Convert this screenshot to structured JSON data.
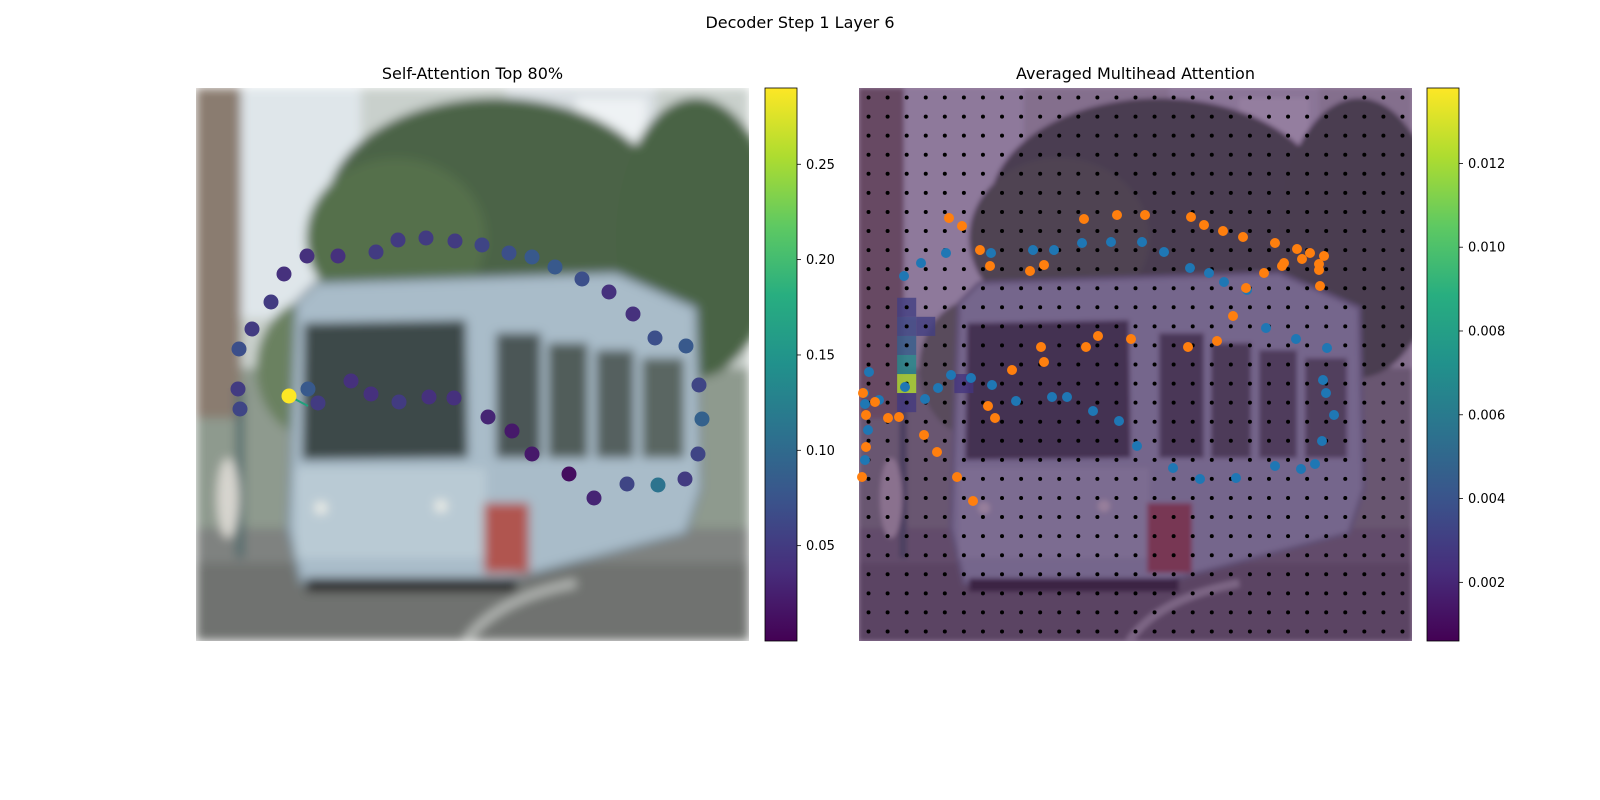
{
  "figure": {
    "suptitle": "Decoder Step 1 Layer 6"
  },
  "chart_data": [
    {
      "type": "scatter",
      "title": "Self-Attention Top 80%",
      "background": "blurred street photo of a light-blue tram",
      "colormap": "viridis",
      "colorbar": {
        "min": 0.0,
        "max": 0.29,
        "ticks": [
          0.05,
          0.1,
          0.15,
          0.2,
          0.25
        ],
        "tick_labels": [
          "0.05",
          "0.10",
          "0.15",
          "0.20",
          "0.25"
        ]
      },
      "query_point": {
        "x": 93,
        "y": 308,
        "value": 0.29
      },
      "attention_links": [
        {
          "from": [
            93,
            308
          ],
          "to": [
            112,
            318
          ]
        }
      ],
      "points": [
        {
          "x": 44,
          "y": 321,
          "v": 0.06
        },
        {
          "x": 42,
          "y": 301,
          "v": 0.05
        },
        {
          "x": 43,
          "y": 261,
          "v": 0.07
        },
        {
          "x": 56,
          "y": 241,
          "v": 0.05
        },
        {
          "x": 75,
          "y": 214,
          "v": 0.05
        },
        {
          "x": 88,
          "y": 186,
          "v": 0.04
        },
        {
          "x": 111,
          "y": 168,
          "v": 0.04
        },
        {
          "x": 142,
          "y": 168,
          "v": 0.04
        },
        {
          "x": 180,
          "y": 164,
          "v": 0.05
        },
        {
          "x": 202,
          "y": 152,
          "v": 0.05
        },
        {
          "x": 230,
          "y": 150,
          "v": 0.05
        },
        {
          "x": 259,
          "y": 153,
          "v": 0.05
        },
        {
          "x": 286,
          "y": 157,
          "v": 0.06
        },
        {
          "x": 313,
          "y": 165,
          "v": 0.07
        },
        {
          "x": 336,
          "y": 169,
          "v": 0.08
        },
        {
          "x": 359,
          "y": 179,
          "v": 0.08
        },
        {
          "x": 386,
          "y": 191,
          "v": 0.07
        },
        {
          "x": 413,
          "y": 204,
          "v": 0.04
        },
        {
          "x": 437,
          "y": 226,
          "v": 0.04
        },
        {
          "x": 459,
          "y": 250,
          "v": 0.07
        },
        {
          "x": 490,
          "y": 258,
          "v": 0.08
        },
        {
          "x": 503,
          "y": 297,
          "v": 0.06
        },
        {
          "x": 506,
          "y": 331,
          "v": 0.09
        },
        {
          "x": 502,
          "y": 366,
          "v": 0.06
        },
        {
          "x": 489,
          "y": 391,
          "v": 0.05
        },
        {
          "x": 462,
          "y": 397,
          "v": 0.11
        },
        {
          "x": 431,
          "y": 396,
          "v": 0.06
        },
        {
          "x": 398,
          "y": 410,
          "v": 0.03
        },
        {
          "x": 373,
          "y": 386,
          "v": 0.01
        },
        {
          "x": 336,
          "y": 366,
          "v": 0.02
        },
        {
          "x": 316,
          "y": 343,
          "v": 0.02
        },
        {
          "x": 292,
          "y": 329,
          "v": 0.03
        },
        {
          "x": 258,
          "y": 310,
          "v": 0.04
        },
        {
          "x": 233,
          "y": 309,
          "v": 0.04
        },
        {
          "x": 203,
          "y": 314,
          "v": 0.05
        },
        {
          "x": 175,
          "y": 306,
          "v": 0.04
        },
        {
          "x": 155,
          "y": 293,
          "v": 0.04
        },
        {
          "x": 122,
          "y": 315,
          "v": 0.05
        },
        {
          "x": 112,
          "y": 301,
          "v": 0.08
        }
      ]
    },
    {
      "type": "heatmap",
      "title": "Averaged Multihead Attention",
      "background": "blurred street photo of a light-blue tram under attention heatmap",
      "colormap": "viridis",
      "colorbar": {
        "min": 0.0006,
        "max": 0.0138,
        "ticks": [
          0.002,
          0.004,
          0.006,
          0.008,
          0.01,
          0.012
        ],
        "tick_labels": [
          "0.002",
          "0.004",
          "0.006",
          "0.008",
          "0.010",
          "0.012"
        ]
      },
      "grid": {
        "cols": 29,
        "rows": 29,
        "marker_color": "#000000"
      },
      "hot_cells": [
        {
          "col": 2,
          "row": 15,
          "value": 0.0122
        },
        {
          "col": 2,
          "row": 14,
          "value": 0.0068
        },
        {
          "col": 2,
          "row": 13,
          "value": 0.0045
        },
        {
          "col": 2,
          "row": 12,
          "value": 0.0035
        },
        {
          "col": 2,
          "row": 11,
          "value": 0.003
        },
        {
          "col": 2,
          "row": 16,
          "value": 0.0028
        },
        {
          "col": 3,
          "row": 12,
          "value": 0.003
        },
        {
          "col": 5,
          "row": 15,
          "value": 0.0026
        }
      ],
      "series": [
        {
          "name": "",
          "color": "#1f77b4",
          "points": [
            [
              6,
              372
            ],
            [
              9,
              342
            ],
            [
              6,
              316
            ],
            [
              10,
              284
            ],
            [
              5,
              305
            ],
            [
              20,
              312
            ],
            [
              46,
              299
            ],
            [
              66,
              311
            ],
            [
              79,
              300
            ],
            [
              92,
              287
            ],
            [
              112,
              290
            ],
            [
              133,
              297
            ],
            [
              157,
              313
            ],
            [
              193,
              309
            ],
            [
              208,
              309
            ],
            [
              234,
              323
            ],
            [
              260,
              333
            ],
            [
              278,
              358
            ],
            [
              314,
              380
            ],
            [
              341,
              391
            ],
            [
              377,
              390
            ],
            [
              416,
              378
            ],
            [
              442,
              381
            ],
            [
              456,
              376
            ],
            [
              463,
              353
            ],
            [
              475,
              327
            ],
            [
              467,
              305
            ],
            [
              464,
              292
            ],
            [
              468,
              260
            ],
            [
              437,
              251
            ],
            [
              407,
              240
            ],
            [
              388,
              202
            ],
            [
              365,
              194
            ],
            [
              350,
              185
            ],
            [
              331,
              180
            ],
            [
              305,
              164
            ],
            [
              283,
              154
            ],
            [
              252,
              154
            ],
            [
              223,
              155
            ],
            [
              195,
              162
            ],
            [
              174,
              162
            ],
            [
              132,
              165
            ],
            [
              87,
              165
            ],
            [
              62,
              175
            ],
            [
              45,
              188
            ]
          ]
        },
        {
          "name": "",
          "color": "#ff7f0e",
          "points": [
            [
              3,
              389
            ],
            [
              7,
              359
            ],
            [
              7,
              327
            ],
            [
              4,
              305
            ],
            [
              16,
              314
            ],
            [
              29,
              330
            ],
            [
              40,
              329
            ],
            [
              65,
              347
            ],
            [
              78,
              364
            ],
            [
              98,
              389
            ],
            [
              114,
              413
            ],
            [
              129,
              318
            ],
            [
              136,
              330
            ],
            [
              153,
              282
            ],
            [
              185,
              274
            ],
            [
              182,
              259
            ],
            [
              227,
              259
            ],
            [
              239,
              248
            ],
            [
              272,
              251
            ],
            [
              329,
              259
            ],
            [
              358,
              253
            ],
            [
              374,
              228
            ],
            [
              387,
              200
            ],
            [
              405,
              185
            ],
            [
              423,
              178
            ],
            [
              425,
              175
            ],
            [
              443,
              171
            ],
            [
              451,
              165
            ],
            [
              460,
              182
            ],
            [
              460,
              176
            ],
            [
              461,
              198
            ],
            [
              465,
              168
            ],
            [
              438,
              161
            ],
            [
              416,
              155
            ],
            [
              384,
              149
            ],
            [
              364,
              143
            ],
            [
              345,
              137
            ],
            [
              332,
              129
            ],
            [
              286,
              127
            ],
            [
              258,
              127
            ],
            [
              225,
              131
            ],
            [
              185,
              177
            ],
            [
              171,
              183
            ],
            [
              131,
              178
            ],
            [
              121,
              162
            ],
            [
              103,
              138
            ],
            [
              90,
              130
            ]
          ]
        }
      ]
    }
  ]
}
